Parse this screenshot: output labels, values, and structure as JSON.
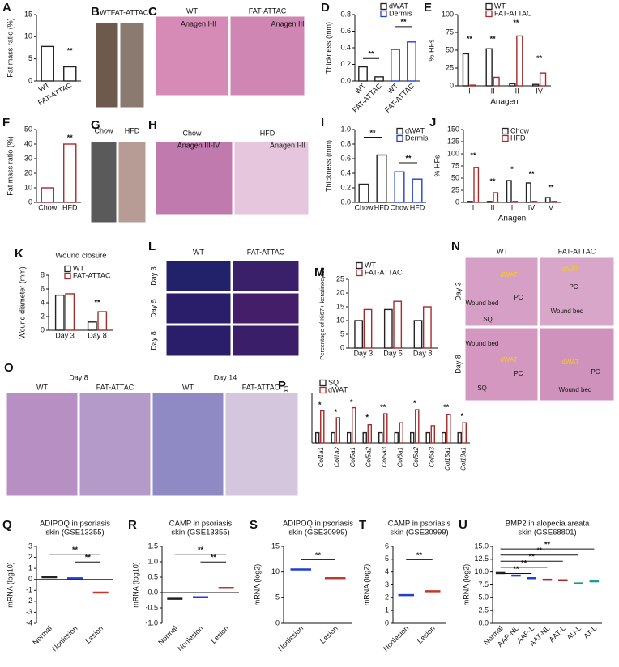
{
  "chart_data": [
    {
      "panel": "A",
      "type": "bar",
      "ylabel": "Fat mass ratio (%)",
      "ylim": [
        0,
        15
      ],
      "yticks": [
        0,
        5,
        10,
        15
      ],
      "categories": [
        "WT",
        "FAT-ATTAC"
      ],
      "series": [
        {
          "color": "#222222",
          "values": [
            7.8,
            3.2
          ]
        }
      ],
      "annotations": [
        "**"
      ]
    },
    {
      "panel": "D",
      "type": "bar",
      "ylabel": "Thickness (mm)",
      "ylim": [
        0,
        0.8
      ],
      "yticks": [
        {
          "value": 0,
          "label": "0.0"
        },
        0.2,
        0.4,
        0.6,
        0.8
      ],
      "categories": [
        "WT",
        "FAT-ATTAC",
        "WT",
        "FAT-ATTAC"
      ],
      "series": [
        {
          "name": "dWAT",
          "color": "#222222",
          "values": [
            0.17,
            0.05,
            null,
            null
          ]
        },
        {
          "name": "Dermis",
          "color": "#1f3fd8",
          "values": [
            null,
            null,
            0.38,
            0.47
          ]
        }
      ],
      "annotations": [
        "**",
        "**"
      ]
    },
    {
      "panel": "E",
      "type": "bar",
      "ylabel": "% HFs",
      "xlabel": "Anagen",
      "ylim": [
        0,
        100
      ],
      "yticks": [
        0,
        25,
        50,
        75,
        100
      ],
      "categories": [
        "I",
        "II",
        "III",
        "IV"
      ],
      "series": [
        {
          "name": "WT",
          "color": "#222222",
          "values": [
            45,
            52,
            3,
            2
          ]
        },
        {
          "name": "FAT-ATTAC",
          "color": "#a52a2a",
          "values": [
            1,
            12,
            70,
            18
          ]
        }
      ],
      "annotations": [
        "**",
        "**",
        "**",
        "**"
      ]
    },
    {
      "panel": "F",
      "type": "bar",
      "ylabel": "Fat mass ratio (%)",
      "ylim": [
        0,
        50
      ],
      "yticks": [
        0,
        10,
        20,
        30,
        40,
        50
      ],
      "categories": [
        "Chow",
        "HFD"
      ],
      "series": [
        {
          "color": "#a52a2a",
          "values": [
            10,
            40
          ]
        }
      ],
      "annotations": [
        "**"
      ]
    },
    {
      "panel": "I",
      "type": "bar",
      "ylabel": "Thickness (mm)",
      "ylim": [
        0,
        1.0
      ],
      "yticks": [
        {
          "value": 0,
          "label": "0.0"
        },
        0.2,
        0.4,
        0.6,
        0.8,
        {
          "value": 1,
          "label": "1.0"
        }
      ],
      "categories": [
        "Chow",
        "HFD",
        "Chow",
        "HFD"
      ],
      "series": [
        {
          "name": "dWAT",
          "color": "#222222",
          "values": [
            0.25,
            0.65,
            null,
            null
          ]
        },
        {
          "name": "Dermis",
          "color": "#1f3fd8",
          "values": [
            null,
            null,
            0.42,
            0.32
          ]
        }
      ],
      "annotations": [
        "**",
        "**"
      ]
    },
    {
      "panel": "J",
      "type": "bar",
      "ylabel": "% HFs",
      "xlabel": "Anagen",
      "ylim": [
        0,
        150
      ],
      "yticks": [
        0,
        25,
        50,
        75,
        100,
        125,
        150
      ],
      "categories": [
        "I",
        "II",
        "III",
        "IV",
        "V"
      ],
      "series": [
        {
          "name": "Chow",
          "color": "#222222",
          "values": [
            2,
            2,
            45,
            40,
            10
          ]
        },
        {
          "name": "HFD",
          "color": "#a52a2a",
          "values": [
            72,
            20,
            2,
            2,
            2
          ]
        }
      ],
      "annotations": [
        "**",
        "**",
        "*",
        "**",
        "**"
      ]
    },
    {
      "panel": "K",
      "type": "bar",
      "title": [
        "Wound closure"
      ],
      "ylabel": "Wound diameter (mm)",
      "ylim": [
        0,
        8
      ],
      "yticks": [
        0,
        2,
        4,
        6,
        8
      ],
      "categories": [
        "Day 3",
        "Day 8"
      ],
      "series": [
        {
          "name": "WT",
          "color": "#222222",
          "values": [
            5.1,
            1.2
          ]
        },
        {
          "name": "FAT-ATTAC",
          "color": "#a52a2a",
          "values": [
            5.3,
            2.7
          ]
        }
      ],
      "annotations": [
        "**"
      ]
    },
    {
      "panel": "M",
      "type": "bar",
      "ylabel": "Percentage of Ki67+ keratinocytes",
      "ylim": [
        0,
        25
      ],
      "yticks": [
        0,
        5,
        10,
        15,
        20,
        25
      ],
      "categories": [
        "Day 3",
        "Day 5",
        "Day 8"
      ],
      "series": [
        {
          "name": "WT",
          "color": "#222222",
          "values": [
            10,
            14,
            10
          ]
        },
        {
          "name": "FAT-ATTAC",
          "color": "#a52a2a",
          "values": [
            14,
            17,
            15
          ]
        }
      ],
      "annotations": []
    },
    {
      "panel": "P",
      "type": "bar",
      "ylabel": "Relative expression",
      "ylim": [
        0,
        5
      ],
      "yticks": [],
      "categories": [
        "Col1a1",
        "Col1a2",
        "Col5a1",
        "Col5a2",
        "Col5a3",
        "Col6a1",
        "Col6a2",
        "Col6a3",
        "Col15a1",
        "Col18a1"
      ],
      "series": [
        {
          "name": "SQ",
          "color": "#222222",
          "values": [
            1,
            1,
            1,
            1,
            1,
            1,
            1,
            1,
            1,
            1
          ]
        },
        {
          "name": "dWAT",
          "color": "#a52a2a",
          "values": [
            3.2,
            2.5,
            3.5,
            1.8,
            2.9,
            2.0,
            3.3,
            1.7,
            2.8,
            2.0
          ]
        }
      ],
      "annotations": [
        "*",
        "*",
        "*",
        "*",
        "**",
        "*",
        "**",
        "*"
      ]
    },
    {
      "panel": "Q",
      "type": "scatter",
      "title": [
        "ADIPOQ in psoriasis",
        "skin (GSE13355)"
      ],
      "ylabel": "mRNA (log10)",
      "ylim": [
        -4,
        3
      ],
      "yticks": [
        -4,
        -3,
        -2,
        -1,
        0,
        1,
        2,
        3
      ],
      "categories": [
        "Normal",
        "Nonlesion",
        "Lesion"
      ],
      "colors": [
        "#222222",
        "#1f3fd8",
        "#c0392b"
      ],
      "values": [
        0.2,
        0.1,
        -1.2
      ],
      "annotations": [
        "**",
        "**"
      ]
    },
    {
      "panel": "R",
      "type": "scatter",
      "title": [
        "CAMP in psoriasis",
        "skin (GSE13355)"
      ],
      "ylabel": "mRNA (log10)",
      "ylim": [
        -1,
        1.5
      ],
      "yticks": [
        {
          "value": -1,
          "label": "-1.0"
        },
        -0.5,
        {
          "value": 0,
          "label": "0.0"
        },
        0.5,
        {
          "value": 1,
          "label": "1.0"
        },
        1.5
      ],
      "categories": [
        "Normal",
        "Nonlesion",
        "Lesion"
      ],
      "colors": [
        "#222222",
        "#1f3fd8",
        "#c0392b"
      ],
      "values": [
        -0.2,
        -0.15,
        0.15
      ],
      "annotations": [
        "**",
        "**"
      ]
    },
    {
      "panel": "S",
      "type": "scatter",
      "title": [
        "ADIPOQ in psoriasis",
        "skin (GSE30999)"
      ],
      "ylabel": "mRNA (log2)",
      "ylim": [
        0,
        15
      ],
      "yticks": [
        0,
        5,
        10,
        15
      ],
      "categories": [
        "Nonlesion",
        "Lesion"
      ],
      "colors": [
        "#1f3fd8",
        "#c0392b"
      ],
      "values": [
        10.5,
        8.8
      ],
      "annotations": [
        "**"
      ]
    },
    {
      "panel": "T",
      "type": "scatter",
      "title": [
        "CAMP in psoriasis",
        "skin (GSE30999)"
      ],
      "ylabel": "mRNA (log2)",
      "ylim": [
        0,
        6
      ],
      "yticks": [
        0,
        1,
        2,
        3,
        4,
        5,
        6
      ],
      "categories": [
        "Nonlesion",
        "Lesion"
      ],
      "colors": [
        "#1f3fd8",
        "#c0392b"
      ],
      "values": [
        2.2,
        2.5
      ],
      "annotations": [
        "**"
      ]
    },
    {
      "panel": "U",
      "type": "scatter",
      "title": [
        "BMP2 in alopecia areata",
        "skin (GSE68801)"
      ],
      "ylabel": "mRNA (log2)",
      "ylim": [
        0,
        15
      ],
      "yticks": [
        {
          "value": 0,
          "label": "0.0"
        },
        2.5,
        {
          "value": 5,
          "label": "5.0"
        },
        7.5,
        {
          "value": 10,
          "label": "10.0"
        },
        12.5,
        {
          "value": 15,
          "label": "15.0"
        }
      ],
      "categories": [
        "Normal",
        "AAP-NL",
        "AAP-L",
        "AAT-NL",
        "AAT-L",
        "AU-L",
        "AT-L"
      ],
      "colors": [
        "#222222",
        "#1f3fd8",
        "#1f3fd8",
        "#a52a2a",
        "#a52a2a",
        "#1aa06a",
        "#1aa08a"
      ],
      "values": [
        9.8,
        9.3,
        8.8,
        8.5,
        8.4,
        7.8,
        8.2
      ],
      "annotations": [
        "**",
        "**",
        "**",
        "**",
        "**"
      ]
    }
  ],
  "images": [
    {
      "panel": "B",
      "labels": [
        "WT",
        "FAT-ATTAC"
      ]
    },
    {
      "panel": "C",
      "labels": [
        "WT",
        "FAT-ATTAC",
        "Anagen I-II",
        "Anagen III"
      ]
    },
    {
      "panel": "G",
      "labels": [
        "Chow",
        "HFD"
      ]
    },
    {
      "panel": "H",
      "labels": [
        "Chow",
        "HFD",
        "Anagen III-IV",
        "Anagen I-II"
      ]
    },
    {
      "panel": "L",
      "labels": [
        "WT",
        "FAT-ATTAC",
        "Day 3",
        "Day 5",
        "Day 8"
      ]
    },
    {
      "panel": "N",
      "labels": [
        "WT",
        "FAT-ATTAC",
        "Day 3",
        "Day 8",
        "dWAT",
        "PC",
        "Wound bed",
        "SQ",
        "dWAT",
        "PC",
        "Wound bed",
        "Wound bed",
        "dWAT",
        "PC",
        "SQ",
        "dWAT",
        "PC",
        "Wound bed"
      ]
    },
    {
      "panel": "O",
      "labels": [
        "Day 8",
        "Day 14",
        "WT",
        "FAT-ATTAC",
        "WT",
        "FAT-ATTAC"
      ]
    }
  ]
}
